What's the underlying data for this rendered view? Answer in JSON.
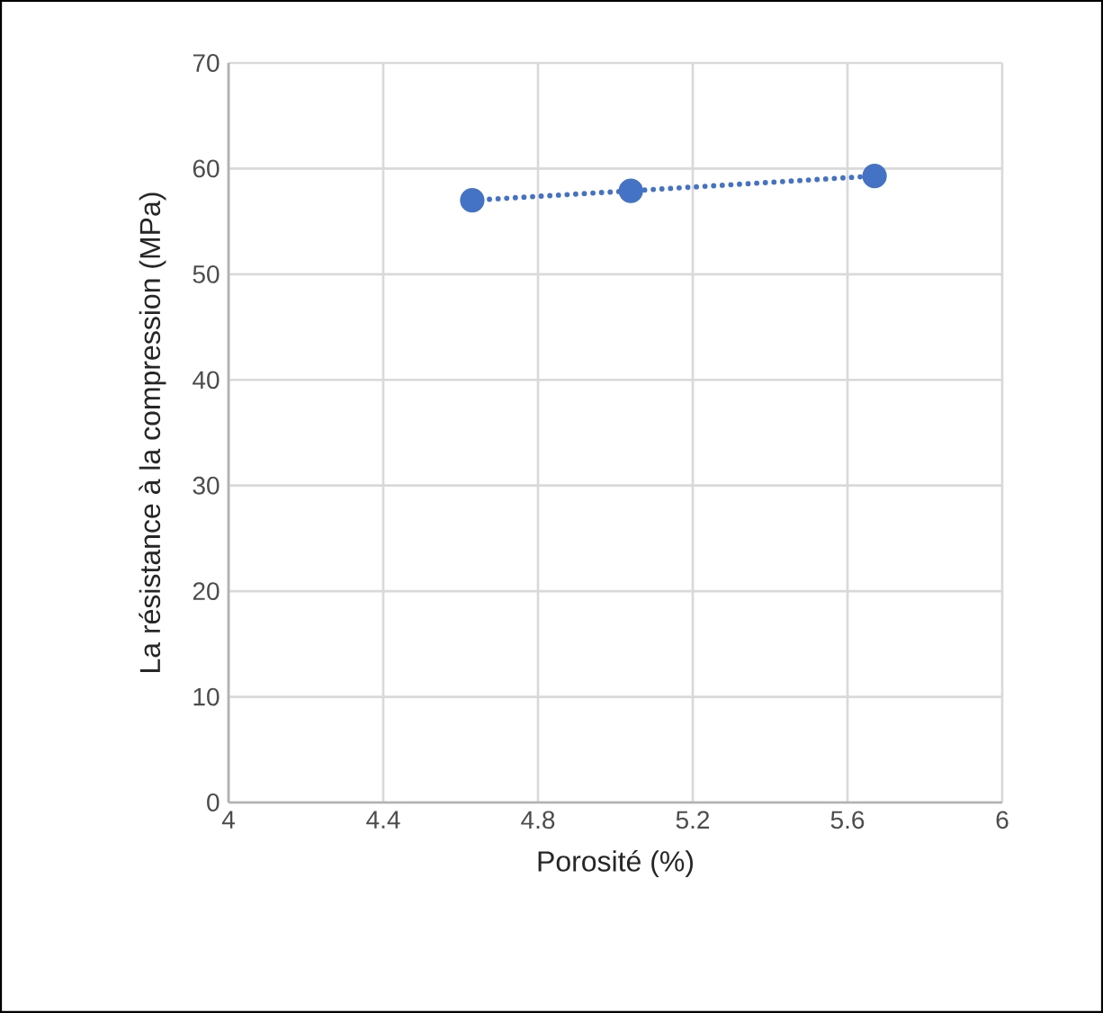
{
  "chart_data": {
    "type": "line",
    "xlabel": "Porosité (%)",
    "ylabel": "La résistance à la compression (MPa)",
    "x": [
      4.63,
      5.04,
      5.67
    ],
    "series": [
      {
        "color": "#4472c4",
        "values": [
          57.0,
          57.9,
          59.3
        ]
      }
    ],
    "xlim": [
      4,
      6
    ],
    "xticks": [
      4,
      4.4,
      4.8,
      5.2,
      5.6,
      6
    ],
    "ylim": [
      0,
      70
    ],
    "yticks": [
      0,
      10,
      20,
      30,
      40,
      50,
      60,
      70
    ],
    "grid": true,
    "marker": "circle",
    "line_style": "dotted"
  }
}
